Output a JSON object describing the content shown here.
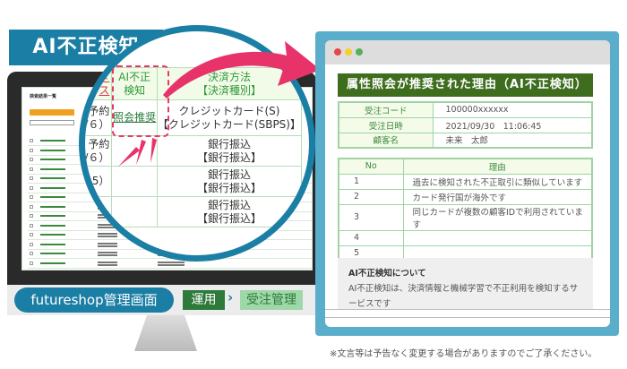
{
  "banner": {
    "title": "AI不正検知"
  },
  "screen": {
    "title": "検索結果一覧"
  },
  "bottom": {
    "admin_label": "futureshop管理画面",
    "crumb1": "運用",
    "crumb_sep": "›",
    "crumb2": "受注管理"
  },
  "lens": {
    "headers": [
      "ータス",
      "AI不正\n検知",
      "決済方法\n【決済種別】"
    ],
    "rows": [
      {
        "status": "予約\n/６）",
        "ai": "照会推奨",
        "pay": "クレジットカード(S)\n【クレジットカード(SBPS)】"
      },
      {
        "status": "予約\n/６）",
        "ai": "",
        "pay": "銀行振込\n【銀行振込】"
      },
      {
        "status": "5）",
        "ai": "",
        "pay": "銀行振込\n【銀行振込】"
      },
      {
        "status": "",
        "ai": "",
        "pay": "銀行振込\n【銀行振込】"
      }
    ]
  },
  "panel": {
    "header": "属性照会が推奨された理由（AI不正検知）",
    "info": [
      {
        "label": "受注コード",
        "value": "100000xxxxxx"
      },
      {
        "label": "受注日時",
        "value": "2021/09/30　11:06:45"
      },
      {
        "label": "顧客名",
        "value": "未来　太郎"
      }
    ],
    "reasons_headers": {
      "no": "No",
      "reason": "理由"
    },
    "reasons": [
      {
        "no": "1",
        "reason": "過去に検知された不正取引に類似しています"
      },
      {
        "no": "2",
        "reason": "カード発行国が海外です"
      },
      {
        "no": "3",
        "reason": "同じカードが複数の顧客IDで利用されています"
      },
      {
        "no": "4",
        "reason": ""
      },
      {
        "no": "5",
        "reason": ""
      }
    ],
    "about_title": "AI不正検知について",
    "about_text": "AI不正検知は、決済情報と機械学習で不正利用を検知するサービスです"
  },
  "footnote": "※文言等は予告なく変更する場合がありますのでご了承ください。",
  "colors": {
    "brand_blue": "#1b7ea4",
    "accent_pink": "#e8336a",
    "header_green": "#3e6d1e"
  }
}
